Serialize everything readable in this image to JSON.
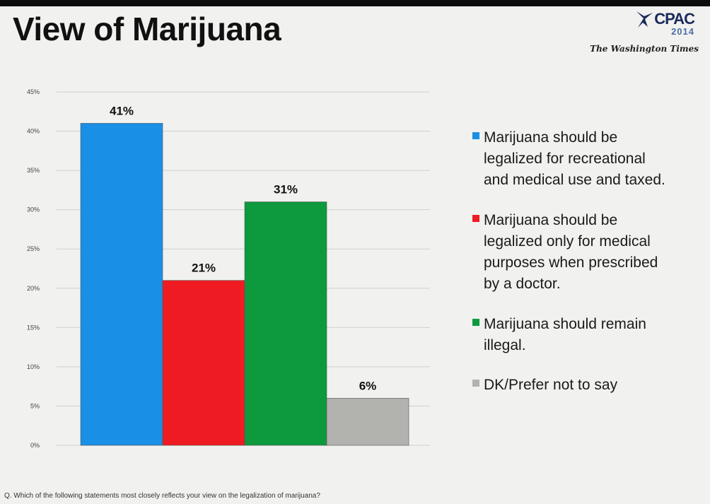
{
  "title": "View of Marijuana",
  "logo": {
    "line1": "CPAC",
    "line2": "2014",
    "paper": "The Washington Times"
  },
  "footnote": "Q. Which of the following statements most closely reflects your view on the legalization of marijuana?",
  "chart_data": {
    "type": "bar",
    "title": "View of Marijuana",
    "xlabel": "",
    "ylabel": "",
    "ylim": [
      0,
      45
    ],
    "yticks": [
      0,
      5,
      10,
      15,
      20,
      25,
      30,
      35,
      40,
      45
    ],
    "ytick_format": "{v}%",
    "grid": true,
    "legend_position": "right",
    "categories": [
      "Marijuana should be legalized for recreational and medical use and taxed.",
      "Marijuana should be legalized only for medical purposes when prescribed by a doctor.",
      "Marijuana should remain illegal.",
      "DK/Prefer not to say"
    ],
    "values": [
      41,
      21,
      31,
      6
    ],
    "data_labels": [
      "41%",
      "21%",
      "31%",
      "6%"
    ],
    "colors": [
      "#1a8fe6",
      "#ee1c22",
      "#0d9a3c",
      "#b2b2ae"
    ]
  },
  "legend": [
    {
      "lines": [
        "Marijuana should be",
        "legalized for recreational",
        "and medical use and taxed."
      ],
      "color": "#1a8fe6"
    },
    {
      "lines": [
        "Marijuana should be",
        "legalized only for medical",
        "purposes when prescribed",
        "by a doctor."
      ],
      "color": "#ee1c22"
    },
    {
      "lines": [
        "Marijuana should remain",
        "illegal."
      ],
      "color": "#0d9a3c"
    },
    {
      "lines": [
        "DK/Prefer not to say"
      ],
      "color": "#b2b2ae"
    }
  ]
}
